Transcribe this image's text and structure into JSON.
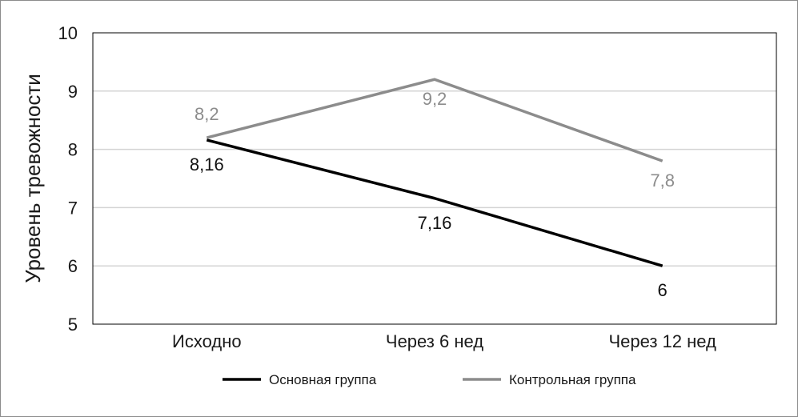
{
  "chart_data": {
    "type": "line",
    "ylabel": "Уровень тревожности",
    "ylim": [
      5,
      10
    ],
    "yticks": [
      "5",
      "6",
      "7",
      "8",
      "9",
      "10"
    ],
    "categories": [
      "Исходно",
      "Через 6 нед",
      "Через 12 нед"
    ],
    "grid": true,
    "legend_position": "bottom",
    "series": [
      {
        "name": "Основная группа",
        "color": "#000000",
        "values": [
          8.16,
          7.16,
          6
        ],
        "labels": [
          "8,16",
          "7,16",
          "6"
        ]
      },
      {
        "name": "Контрольная группа",
        "color": "#8c8c8c",
        "values": [
          8.2,
          9.2,
          7.8
        ],
        "labels": [
          "8,2",
          "9,2",
          "7,8"
        ]
      }
    ]
  }
}
